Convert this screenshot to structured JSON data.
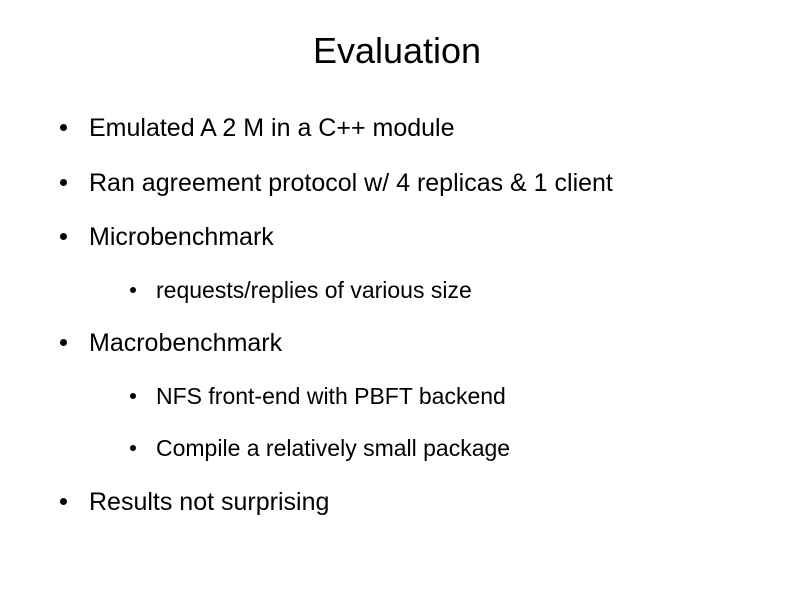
{
  "title": "Evaluation",
  "items": [
    {
      "text": "Emulated A 2 M in a C++ module",
      "level": "top"
    },
    {
      "text": "Ran agreement protocol w/ 4 replicas & 1 client",
      "level": "top"
    },
    {
      "text": "Microbenchmark",
      "level": "top"
    },
    {
      "text": "requests/replies of various size",
      "level": "sub"
    },
    {
      "text": "Macrobenchmark",
      "level": "top"
    },
    {
      "text": "NFS front-end with PBFT backend",
      "level": "sub"
    },
    {
      "text": "Compile a relatively small package",
      "level": "sub"
    },
    {
      "text": "Results not surprising",
      "level": "top"
    }
  ],
  "colors": {
    "background": "#ffffff",
    "text": "#000000",
    "bullet": "#000000"
  },
  "typography": {
    "title_fontsize": 36,
    "body_fontsize": 25,
    "sub_fontsize": 23,
    "font_family": "Arial"
  }
}
